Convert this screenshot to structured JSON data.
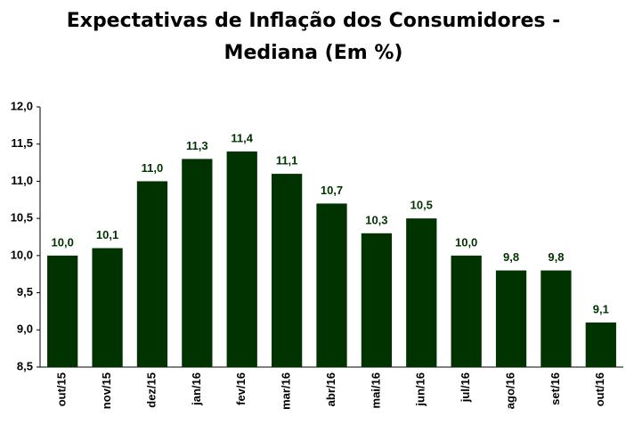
{
  "chart_data": {
    "type": "bar",
    "title": [
      "Expectativas de Inflação dos Consumidores -",
      "Mediana (Em %)"
    ],
    "categories": [
      "out/15",
      "nov/15",
      "dez/15",
      "jan/16",
      "fev/16",
      "mar/16",
      "abr/16",
      "mai/16",
      "jun/16",
      "jul/16",
      "ago/16",
      "set/16",
      "out/16"
    ],
    "values": [
      10.0,
      10.1,
      11.0,
      11.3,
      11.4,
      11.1,
      10.7,
      10.3,
      10.5,
      10.0,
      9.8,
      9.8,
      9.1
    ],
    "value_labels": [
      "10,0",
      "10,1",
      "11,0",
      "11,3",
      "11,4",
      "11,1",
      "10,7",
      "10,3",
      "10,5",
      "10,0",
      "9,8",
      "9,8",
      "9,1"
    ],
    "color": "#003300",
    "ylim": [
      8.5,
      12
    ],
    "yticks": [
      {
        "value": 8.5,
        "label": "8,5"
      },
      {
        "value": 9,
        "label": "9,0"
      },
      {
        "value": 9.5,
        "label": "9,5"
      },
      {
        "value": 10,
        "label": "10,0"
      },
      {
        "value": 10.5,
        "label": "10,5"
      },
      {
        "value": 11,
        "label": "11,0"
      },
      {
        "value": 11.5,
        "label": "11,5"
      },
      {
        "value": 12,
        "label": "12,0"
      }
    ],
    "grid": false
  }
}
